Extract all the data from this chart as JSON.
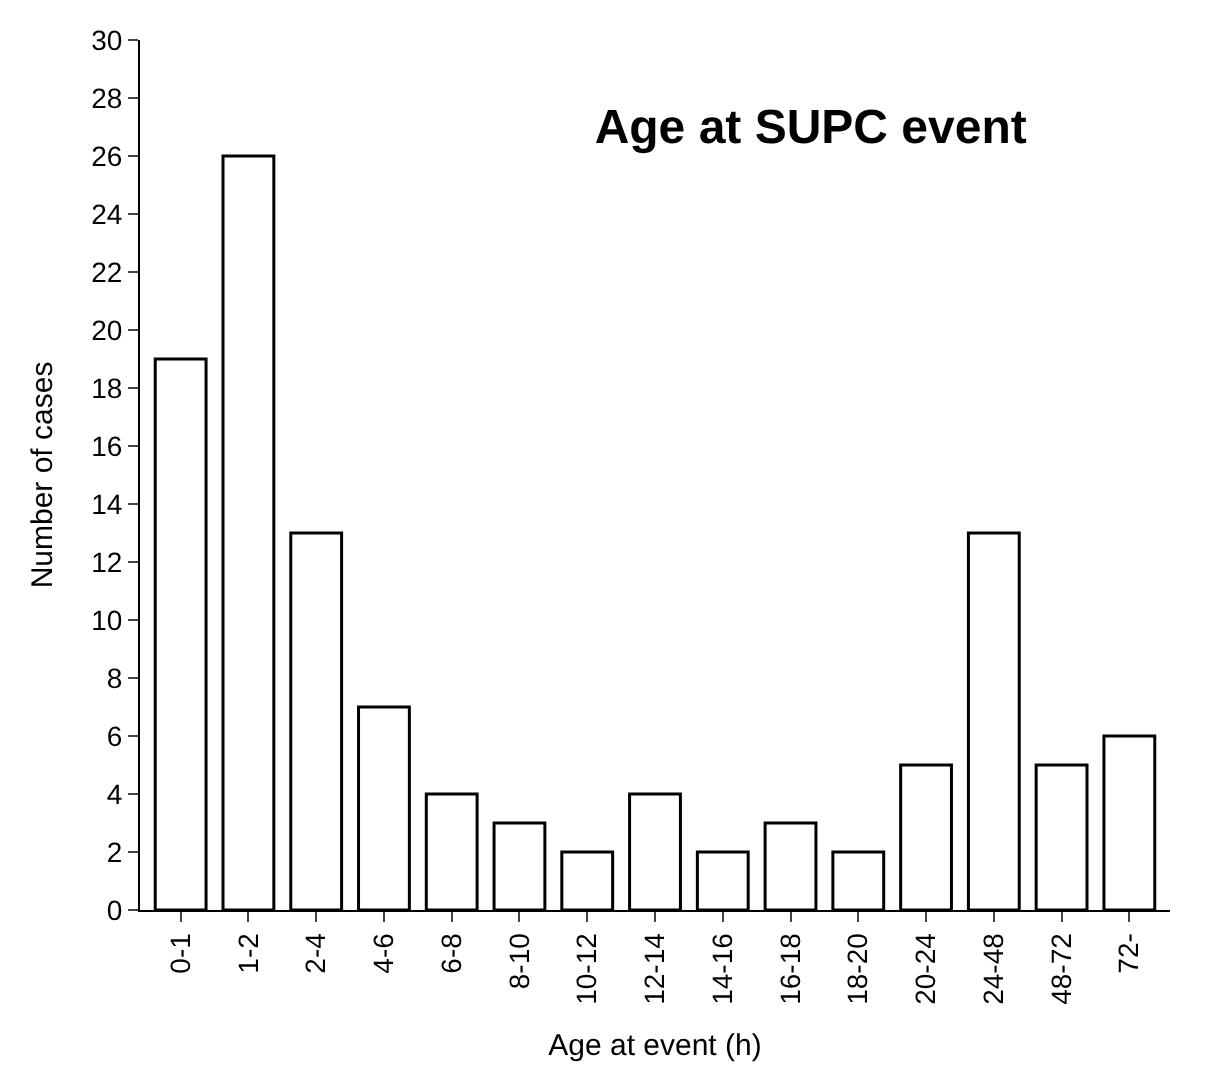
{
  "chart_data": {
    "type": "bar",
    "title": "Age at SUPC event",
    "xlabel": "Age at event (h)",
    "ylabel": "Number of cases",
    "categories": [
      "0-1",
      "1-2",
      "2-4",
      "4-6",
      "6-8",
      "8-10",
      "10-12",
      "12-14",
      "14-16",
      "16-18",
      "18-20",
      "20-24",
      "24-48",
      "48-72",
      "72-"
    ],
    "values": [
      19,
      26,
      13,
      7,
      4,
      3,
      2,
      4,
      2,
      3,
      2,
      5,
      13,
      5,
      6
    ],
    "color": "#ffffff",
    "ylim": [
      0,
      30
    ],
    "yticks": [
      0,
      2,
      4,
      6,
      8,
      10,
      12,
      14,
      16,
      18,
      20,
      22,
      24,
      26,
      28,
      30
    ]
  }
}
